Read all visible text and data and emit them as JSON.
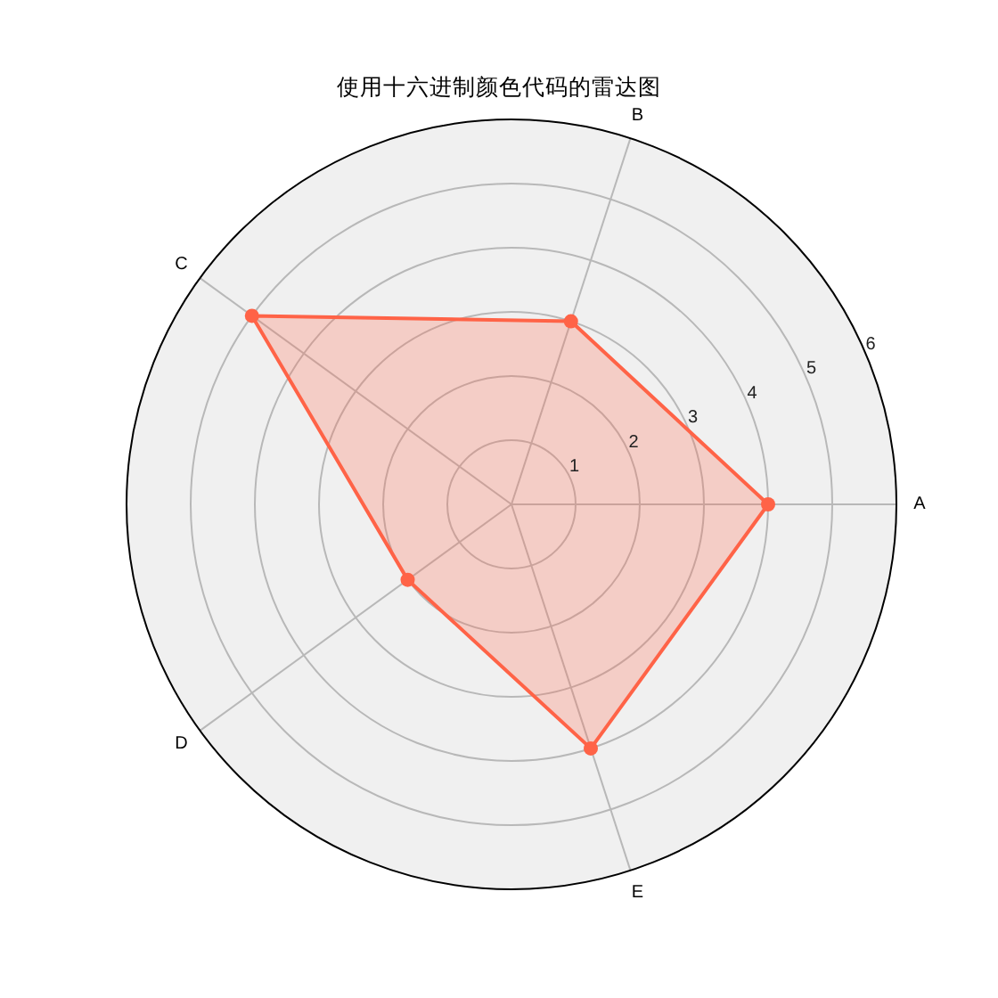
{
  "chart_data": {
    "type": "radar",
    "title": "使用十六进制颜色代码的雷达图",
    "categories": [
      "B",
      "A",
      "E",
      "D",
      "C"
    ],
    "series": [
      {
        "color": "#ff6347",
        "values": [
          3,
          4,
          4,
          2,
          5
        ]
      }
    ],
    "ylim": [
      0,
      6
    ],
    "yticks": [
      1,
      2,
      3,
      4,
      5,
      6
    ],
    "grid": true,
    "marker": "circle",
    "line_style": "solid"
  }
}
